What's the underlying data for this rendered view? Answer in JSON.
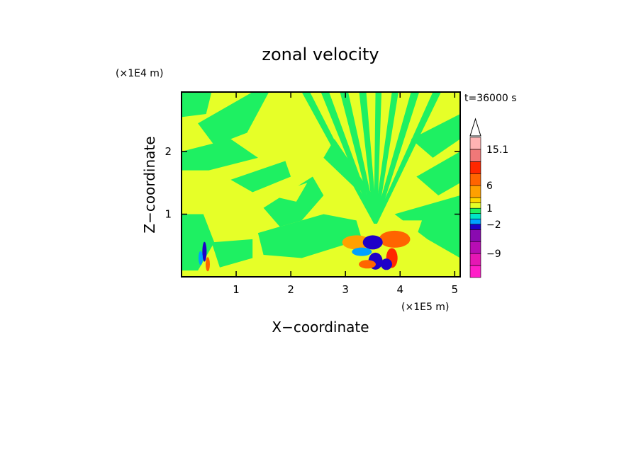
{
  "chart_data": {
    "type": "heatmap",
    "title": "zonal velocity",
    "xlabel": "X−coordinate",
    "ylabel": "Z−coordinate",
    "x_unit": "(×1E5 m)",
    "y_unit": "(×1E4 m)",
    "time_label": "t=36000 s",
    "xlim": [
      0,
      5.1
    ],
    "ylim": [
      0,
      2.95
    ],
    "x_ticks": [
      {
        "value": 1,
        "label": "1"
      },
      {
        "value": 2,
        "label": "2"
      },
      {
        "value": 3,
        "label": "3"
      },
      {
        "value": 4,
        "label": "4"
      },
      {
        "value": 5,
        "label": "5"
      }
    ],
    "y_ticks": [
      {
        "value": 1,
        "label": "1"
      },
      {
        "value": 2,
        "label": "2"
      }
    ],
    "colorbar": {
      "levels": [
        -15,
        -12,
        -9,
        -6,
        -3,
        -2,
        -1,
        0,
        1,
        2,
        3,
        6,
        9,
        12,
        15.1
      ],
      "colors": [
        "#ff1ec8",
        "#e617b4",
        "#b70db4",
        "#8a0ab0",
        "#1e00c8",
        "#00a0ff",
        "#00e6c8",
        "#1ef062",
        "#e6ff28",
        "#ffd700",
        "#ffa000",
        "#ff6400",
        "#ff2800",
        "#f07878",
        "#ffb4b4"
      ],
      "labels": [
        {
          "value": 15.1,
          "text": "15.1"
        },
        {
          "value": 6,
          "text": "6"
        },
        {
          "value": 1,
          "text": "1"
        },
        {
          "value": -2,
          "text": "−2"
        },
        {
          "value": -9,
          "text": "−9"
        }
      ],
      "overflow_arrow": true
    },
    "background_colors": {
      "green": "#1ef062",
      "yellow": "#e6ff28"
    },
    "field_description_values": {
      "dominant_range": [
        -1,
        1
      ],
      "mountain_peaks_x": [
        0.4,
        3.45,
        3.7
      ]
    }
  }
}
